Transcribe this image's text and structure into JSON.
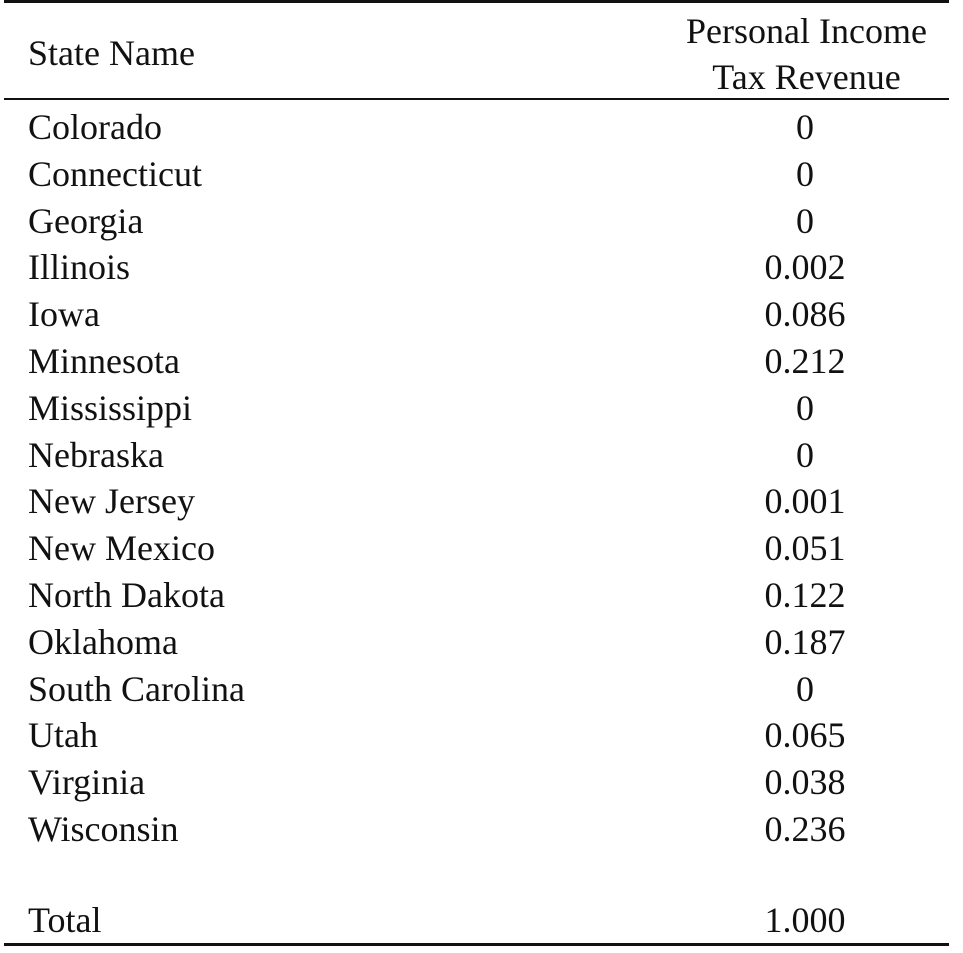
{
  "table": {
    "headers": {
      "state": "State Name",
      "income_line1": "Personal Income",
      "income_line2": "Tax Revenue"
    },
    "rows": [
      {
        "state": "Colorado",
        "value": "0"
      },
      {
        "state": "Connecticut",
        "value": "0"
      },
      {
        "state": "Georgia",
        "value": "0"
      },
      {
        "state": "Illinois",
        "value": "0.002"
      },
      {
        "state": "Iowa",
        "value": "0.086"
      },
      {
        "state": "Minnesota",
        "value": "0.212"
      },
      {
        "state": "Mississippi",
        "value": "0"
      },
      {
        "state": "Nebraska",
        "value": "0"
      },
      {
        "state": "New Jersey",
        "value": "0.001"
      },
      {
        "state": "New Mexico",
        "value": "0.051"
      },
      {
        "state": "North Dakota",
        "value": "0.122"
      },
      {
        "state": "Oklahoma",
        "value": "0.187"
      },
      {
        "state": "South Carolina",
        "value": "0"
      },
      {
        "state": "Utah",
        "value": "0.065"
      },
      {
        "state": "Virginia",
        "value": "0.038"
      },
      {
        "state": "Wisconsin",
        "value": "0.236"
      }
    ],
    "total": {
      "label": "Total",
      "value": "1.000"
    }
  }
}
